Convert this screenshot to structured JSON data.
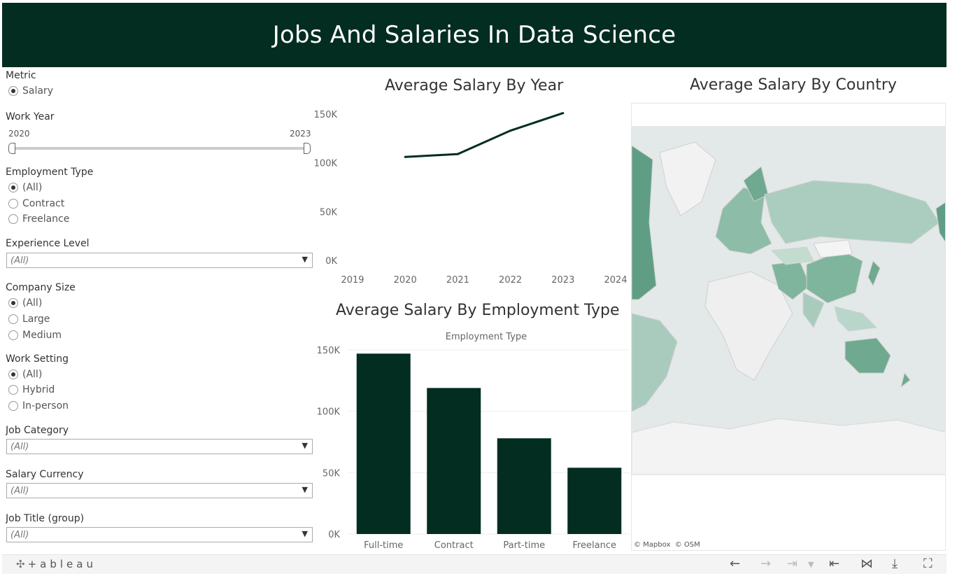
{
  "header": {
    "title": "Jobs And Salaries In Data Science"
  },
  "filters": {
    "metric": {
      "label": "Metric",
      "options": [
        "Salary"
      ],
      "selected": 0
    },
    "work_year": {
      "label": "Work Year",
      "min": "2020",
      "max": "2023"
    },
    "employment_type": {
      "label": "Employment Type",
      "options": [
        "(All)",
        "Contract",
        "Freelance"
      ],
      "selected": 0
    },
    "experience_level": {
      "label": "Experience Level",
      "value": "(All)"
    },
    "company_size": {
      "label": "Company Size",
      "options": [
        "(All)",
        "Large",
        "Medium"
      ],
      "selected": 0
    },
    "work_setting": {
      "label": "Work Setting",
      "options": [
        "(All)",
        "Hybrid",
        "In-person"
      ],
      "selected": 0
    },
    "job_category": {
      "label": "Job Category",
      "value": "(All)"
    },
    "salary_currency": {
      "label": "Salary Currency",
      "value": "(All)"
    },
    "job_title_group": {
      "label": "Job Title (group)",
      "value": "(All)"
    }
  },
  "line_chart": {
    "title": "Average Salary By Year"
  },
  "bar_chart": {
    "title": "Average Salary By Employment Type",
    "header": "Employment Type"
  },
  "map": {
    "title": "Average Salary By Country",
    "credit_mapbox": "© Mapbox",
    "credit_osm": "© OSM"
  },
  "toolbar": {
    "logo": "+ableau"
  },
  "chart_data": [
    {
      "type": "line",
      "title": "Average Salary By Year",
      "x": [
        2020,
        2021,
        2022,
        2023
      ],
      "values": [
        106000,
        109000,
        133000,
        151000
      ],
      "xlim": [
        2019,
        2024
      ],
      "ylim": [
        0,
        150000
      ],
      "x_ticks": [
        "2019",
        "2020",
        "2021",
        "2022",
        "2023",
        "2024"
      ],
      "y_ticks": [
        "0K",
        "50K",
        "100K",
        "150K"
      ],
      "color": "#022d20"
    },
    {
      "type": "bar",
      "title": "Average Salary By Employment Type",
      "xlabel": "Employment Type",
      "categories": [
        "Full-time",
        "Contract",
        "Part-time",
        "Freelance"
      ],
      "values": [
        147000,
        119000,
        78000,
        54000
      ],
      "ylim": [
        0,
        150000
      ],
      "y_ticks": [
        "0K",
        "50K",
        "100K",
        "150K"
      ],
      "grid": true,
      "color": "#022d20"
    }
  ]
}
